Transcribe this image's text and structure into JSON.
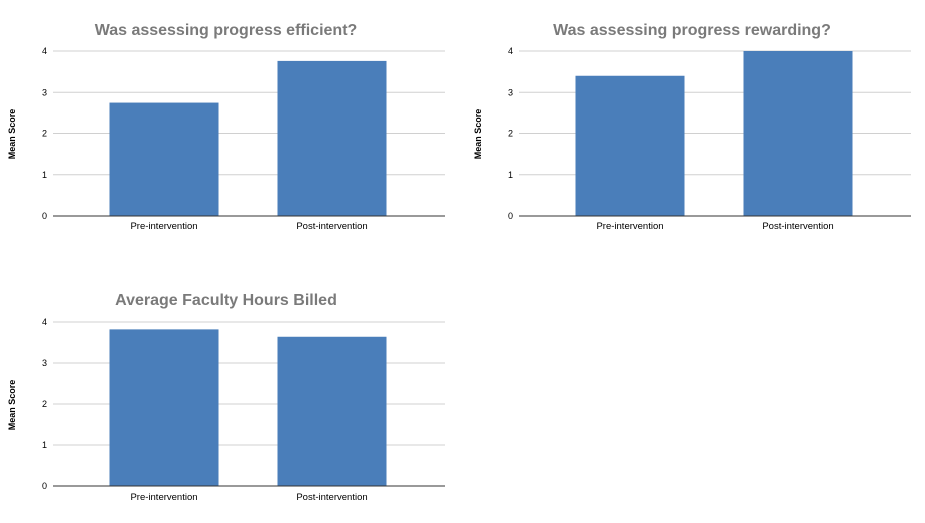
{
  "chart_data": [
    {
      "type": "bar",
      "title": "Was assessing progress efficient?",
      "ylabel": "Mean Score",
      "xlabel": "",
      "categories": [
        "Pre-intervention",
        "Post-intervention"
      ],
      "values": [
        2.75,
        3.76
      ],
      "ylim": [
        0,
        4
      ],
      "yticks": [
        "0",
        "1",
        "2",
        "3",
        "4"
      ],
      "grid": true,
      "legend": "none",
      "color": "#4a7eba"
    },
    {
      "type": "bar",
      "title": "Was assessing progress rewarding?",
      "ylabel": "Mean Score",
      "xlabel": "",
      "categories": [
        "Pre-intervention",
        "Post-intervention"
      ],
      "values": [
        3.4,
        4.0
      ],
      "ylim": [
        0,
        4
      ],
      "yticks": [
        "0",
        "1",
        "2",
        "3",
        "4"
      ],
      "grid": true,
      "legend": "none",
      "color": "#4a7eba"
    },
    {
      "type": "bar",
      "title": "Average Faculty Hours Billed",
      "ylabel": "Mean Score",
      "xlabel": "",
      "categories": [
        "Pre-intervention",
        "Post-intervention"
      ],
      "values": [
        3.82,
        3.64
      ],
      "ylim": [
        0,
        4
      ],
      "yticks": [
        "0",
        "1",
        "2",
        "3",
        "4"
      ],
      "grid": true,
      "legend": "none",
      "color": "#4a7eba"
    }
  ]
}
